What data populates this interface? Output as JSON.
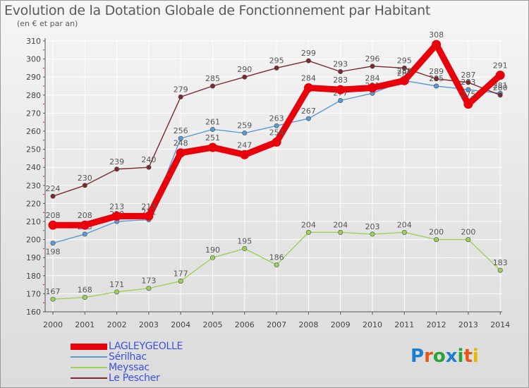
{
  "header": {
    "title": "Evolution de la Dotation Globale de Fonctionnement par Habitant",
    "subtitle": "(en € et par an)"
  },
  "logo": {
    "text": "Proxiti"
  },
  "colors": {
    "grid": "#ffffff",
    "axis": "#555555",
    "tick_text": "#444444",
    "label_text": "#555555"
  },
  "chart_data": {
    "type": "line",
    "title": "Evolution de la Dotation Globale de Fonctionnement par Habitant",
    "subtitle": "(en € et par an)",
    "xlabel": "",
    "ylabel": "",
    "ylim": [
      160,
      310
    ],
    "yticks": [
      160,
      170,
      180,
      190,
      200,
      210,
      220,
      230,
      240,
      250,
      260,
      270,
      280,
      290,
      300,
      310
    ],
    "grid": true,
    "legend_position": "bottom-left",
    "categories": [
      "2000",
      "2001",
      "2002",
      "2003",
      "2004",
      "2005",
      "2006",
      "2007",
      "2008",
      "2009",
      "2010",
      "2011",
      "2012",
      "2013",
      "2014"
    ],
    "series": [
      {
        "name": "LAGLEYGEOLLE",
        "color": "#e8000b",
        "emphasis": true,
        "values": [
          208,
          208,
          213,
          213,
          248,
          251,
          247,
          254,
          284,
          283,
          284,
          288,
          308,
          275,
          291
        ]
      },
      {
        "name": "Sérilhac",
        "color": "#5b9bd5",
        "values": [
          198,
          203,
          210,
          211,
          256,
          261,
          259,
          263,
          267,
          277,
          281,
          288,
          285,
          283,
          281
        ]
      },
      {
        "name": "Meyssac",
        "color": "#9ed15c",
        "values": [
          167,
          168,
          171,
          173,
          177,
          190,
          195,
          186,
          204,
          204,
          203,
          204,
          200,
          200,
          183
        ]
      },
      {
        "name": "Le Pescher",
        "color": "#7b2a2e",
        "values": [
          224,
          230,
          239,
          240,
          279,
          285,
          290,
          295,
          299,
          293,
          296,
          295,
          289,
          287,
          280
        ]
      }
    ]
  }
}
